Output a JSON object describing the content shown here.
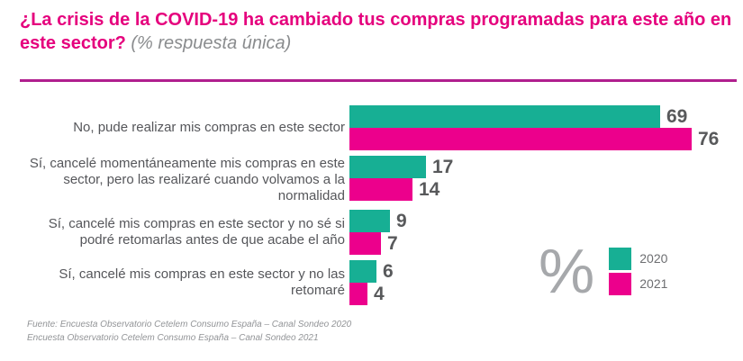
{
  "header": {
    "title_highlight": "¿La crisis de la COVID-19 ha cambiado tus compras programadas para este año en este sector?",
    "title_note": " (% respuesta única)"
  },
  "colors": {
    "title": "#e5007d",
    "divider": "#b01f8e",
    "series_2020": "#17af94",
    "series_2021": "#ec008c",
    "category_text": "#55565a",
    "value_text": "#58595b",
    "percent_symbol": "#a6a8ab",
    "legend_text": "#6d6e71",
    "footer_text": "#929497"
  },
  "chart_data": {
    "type": "bar",
    "orientation": "horizontal",
    "unit": "%",
    "title": "¿La crisis de la COVID-19 ha cambiado tus compras programadas para este año en este sector? (% respuesta única)",
    "categories": [
      "No, pude realizar mis compras en este sector",
      "Sí, cancelé momentáneamente mis compras en este sector, pero las realizaré cuando volvamos a la normalidad",
      "Sí, cancelé mis compras en este sector y no sé si podré retomarlas antes de que acabe el año",
      "Sí, cancelé mis compras en este sector y no las retomaré"
    ],
    "series": [
      {
        "name": "2020",
        "color": "#17af94",
        "values": [
          69,
          17,
          9,
          6
        ]
      },
      {
        "name": "2021",
        "color": "#ec008c",
        "values": [
          76,
          14,
          7,
          4
        ]
      }
    ],
    "xlim": [
      0,
      100
    ],
    "value_labels": true,
    "grid": false,
    "legend_position": "bottom-right"
  },
  "legend": {
    "symbol": "%",
    "items": [
      {
        "label": "2020",
        "color": "#17af94"
      },
      {
        "label": "2021",
        "color": "#ec008c"
      }
    ]
  },
  "footer": {
    "line1": "Fuente: Encuesta Observatorio Cetelem Consumo España – Canal Sondeo 2020",
    "line2": "Encuesta Observatorio Cetelem Consumo España – Canal Sondeo 2021"
  }
}
